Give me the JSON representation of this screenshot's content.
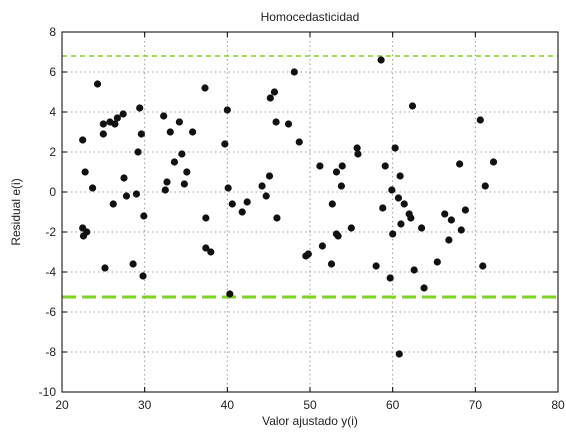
{
  "chart_data": {
    "type": "scatter",
    "title": "Homocedasticidad",
    "xlabel": "Valor ajustado y(i)",
    "ylabel": "Residual e(i)",
    "xlim": [
      20,
      80
    ],
    "ylim": [
      -10,
      8
    ],
    "x_ticks": [
      20,
      30,
      40,
      50,
      60,
      70,
      80
    ],
    "y_ticks": [
      -10,
      -8,
      -6,
      -4,
      -2,
      0,
      2,
      4,
      6,
      8
    ],
    "x_tick_labels": [
      "20",
      "30",
      "40",
      "50",
      "60",
      "70",
      "80"
    ],
    "y_tick_labels": [
      "-10",
      "-8",
      "-6",
      "-4",
      "-2",
      "0",
      "2",
      "4",
      "6",
      "8"
    ],
    "grid": true,
    "reference_lines": [
      {
        "y": 6.8,
        "style": "dashed",
        "color": "#7ed321"
      },
      {
        "y": -5.25,
        "style": "dashed",
        "color": "#7ed321"
      }
    ],
    "marker_color": "#111111",
    "points": [
      [
        22.5,
        2.6
      ],
      [
        22.5,
        -1.8
      ],
      [
        22.6,
        -2.2
      ],
      [
        22.8,
        1.0
      ],
      [
        23.0,
        -2.0
      ],
      [
        23.7,
        0.2
      ],
      [
        24.3,
        5.4
      ],
      [
        25.0,
        2.9
      ],
      [
        25.0,
        3.4
      ],
      [
        25.2,
        -3.8
      ],
      [
        25.8,
        3.5
      ],
      [
        26.2,
        -0.6
      ],
      [
        26.4,
        3.4
      ],
      [
        26.7,
        3.7
      ],
      [
        27.4,
        3.9
      ],
      [
        27.5,
        0.7
      ],
      [
        27.8,
        -0.2
      ],
      [
        28.6,
        -3.6
      ],
      [
        29.0,
        -0.1
      ],
      [
        29.2,
        2.0
      ],
      [
        29.4,
        4.2
      ],
      [
        29.6,
        2.9
      ],
      [
        29.8,
        -4.2
      ],
      [
        29.9,
        -1.2
      ],
      [
        32.3,
        3.8
      ],
      [
        32.5,
        0.1
      ],
      [
        32.7,
        0.5
      ],
      [
        33.1,
        3.0
      ],
      [
        33.6,
        1.5
      ],
      [
        34.2,
        3.5
      ],
      [
        34.5,
        1.9
      ],
      [
        34.8,
        0.4
      ],
      [
        35.1,
        1.0
      ],
      [
        35.8,
        3.0
      ],
      [
        37.3,
        5.2
      ],
      [
        37.4,
        -1.3
      ],
      [
        37.4,
        -2.8
      ],
      [
        38.0,
        -3.0
      ],
      [
        39.7,
        2.4
      ],
      [
        40.0,
        4.1
      ],
      [
        40.1,
        0.2
      ],
      [
        40.3,
        -5.1
      ],
      [
        40.6,
        -0.6
      ],
      [
        41.8,
        -1.0
      ],
      [
        42.4,
        -0.5
      ],
      [
        44.2,
        0.3
      ],
      [
        44.7,
        -0.2
      ],
      [
        45.1,
        0.8
      ],
      [
        45.2,
        4.7
      ],
      [
        45.7,
        5.0
      ],
      [
        45.9,
        3.5
      ],
      [
        46.0,
        -1.3
      ],
      [
        47.4,
        3.4
      ],
      [
        48.1,
        6.0
      ],
      [
        48.7,
        2.5
      ],
      [
        49.5,
        -3.2
      ],
      [
        49.8,
        -3.1
      ],
      [
        51.2,
        1.3
      ],
      [
        51.5,
        -2.7
      ],
      [
        52.6,
        -3.6
      ],
      [
        52.7,
        -0.6
      ],
      [
        53.2,
        1.0
      ],
      [
        53.2,
        -2.1
      ],
      [
        53.4,
        -2.2
      ],
      [
        53.8,
        0.3
      ],
      [
        53.9,
        1.3
      ],
      [
        55.0,
        -1.8
      ],
      [
        55.7,
        2.2
      ],
      [
        55.8,
        1.9
      ],
      [
        58.0,
        -3.7
      ],
      [
        58.6,
        6.6
      ],
      [
        58.8,
        -0.8
      ],
      [
        59.1,
        1.3
      ],
      [
        59.7,
        -4.3
      ],
      [
        59.9,
        0.1
      ],
      [
        60.0,
        -2.1
      ],
      [
        60.3,
        2.2
      ],
      [
        60.7,
        -0.3
      ],
      [
        60.8,
        -8.1
      ],
      [
        60.9,
        0.8
      ],
      [
        61.0,
        -1.6
      ],
      [
        61.4,
        -0.6
      ],
      [
        62.0,
        -1.1
      ],
      [
        62.2,
        -1.3
      ],
      [
        62.4,
        4.3
      ],
      [
        62.6,
        -3.9
      ],
      [
        63.5,
        -1.8
      ],
      [
        63.8,
        -4.8
      ],
      [
        65.4,
        -3.5
      ],
      [
        66.3,
        -1.1
      ],
      [
        66.8,
        -2.4
      ],
      [
        67.1,
        -1.4
      ],
      [
        68.1,
        1.4
      ],
      [
        68.3,
        -1.9
      ],
      [
        68.8,
        -0.9
      ],
      [
        70.6,
        3.6
      ],
      [
        70.9,
        -3.7
      ],
      [
        71.2,
        0.3
      ],
      [
        72.2,
        1.5
      ]
    ]
  }
}
